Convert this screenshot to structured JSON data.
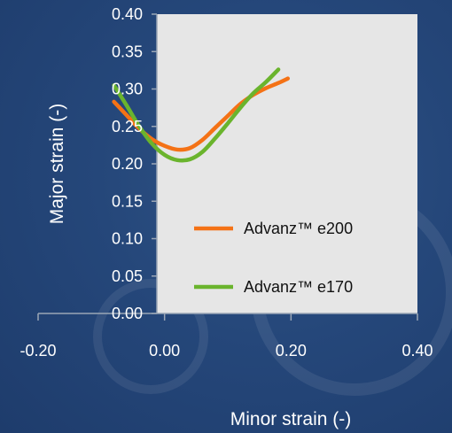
{
  "chart_data": {
    "type": "line",
    "title": "",
    "xlabel": "Minor strain (-)",
    "ylabel": "Major strain (-)",
    "xlim": [
      -0.2,
      0.4
    ],
    "ylim": [
      0.0,
      0.4
    ],
    "xticks": [
      "-0.20",
      "0.00",
      "0.20",
      "0.40"
    ],
    "yticks": [
      "0.00",
      "0.05",
      "0.10",
      "0.15",
      "0.20",
      "0.25",
      "0.30",
      "0.35",
      "0.40"
    ],
    "grid": false,
    "legend_position": "bottom-right",
    "plot_background": "#e6e6e6",
    "series": [
      {
        "name": "Advanz™ e200",
        "color": "#f47216",
        "x": [
          -0.08,
          -0.06,
          -0.04,
          -0.02,
          0.0,
          0.02,
          0.04,
          0.06,
          0.08,
          0.1,
          0.12,
          0.14,
          0.16,
          0.18,
          0.195
        ],
        "y": [
          0.283,
          0.265,
          0.247,
          0.233,
          0.224,
          0.219,
          0.221,
          0.232,
          0.248,
          0.264,
          0.28,
          0.292,
          0.301,
          0.308,
          0.314
        ]
      },
      {
        "name": "Advanz™ e170",
        "color": "#6ab42d",
        "x": [
          -0.08,
          -0.06,
          -0.04,
          -0.02,
          0.0,
          0.02,
          0.04,
          0.06,
          0.08,
          0.1,
          0.12,
          0.14,
          0.16,
          0.18
        ],
        "y": [
          0.305,
          0.278,
          0.25,
          0.227,
          0.212,
          0.205,
          0.206,
          0.216,
          0.234,
          0.254,
          0.275,
          0.294,
          0.309,
          0.326
        ]
      }
    ]
  }
}
